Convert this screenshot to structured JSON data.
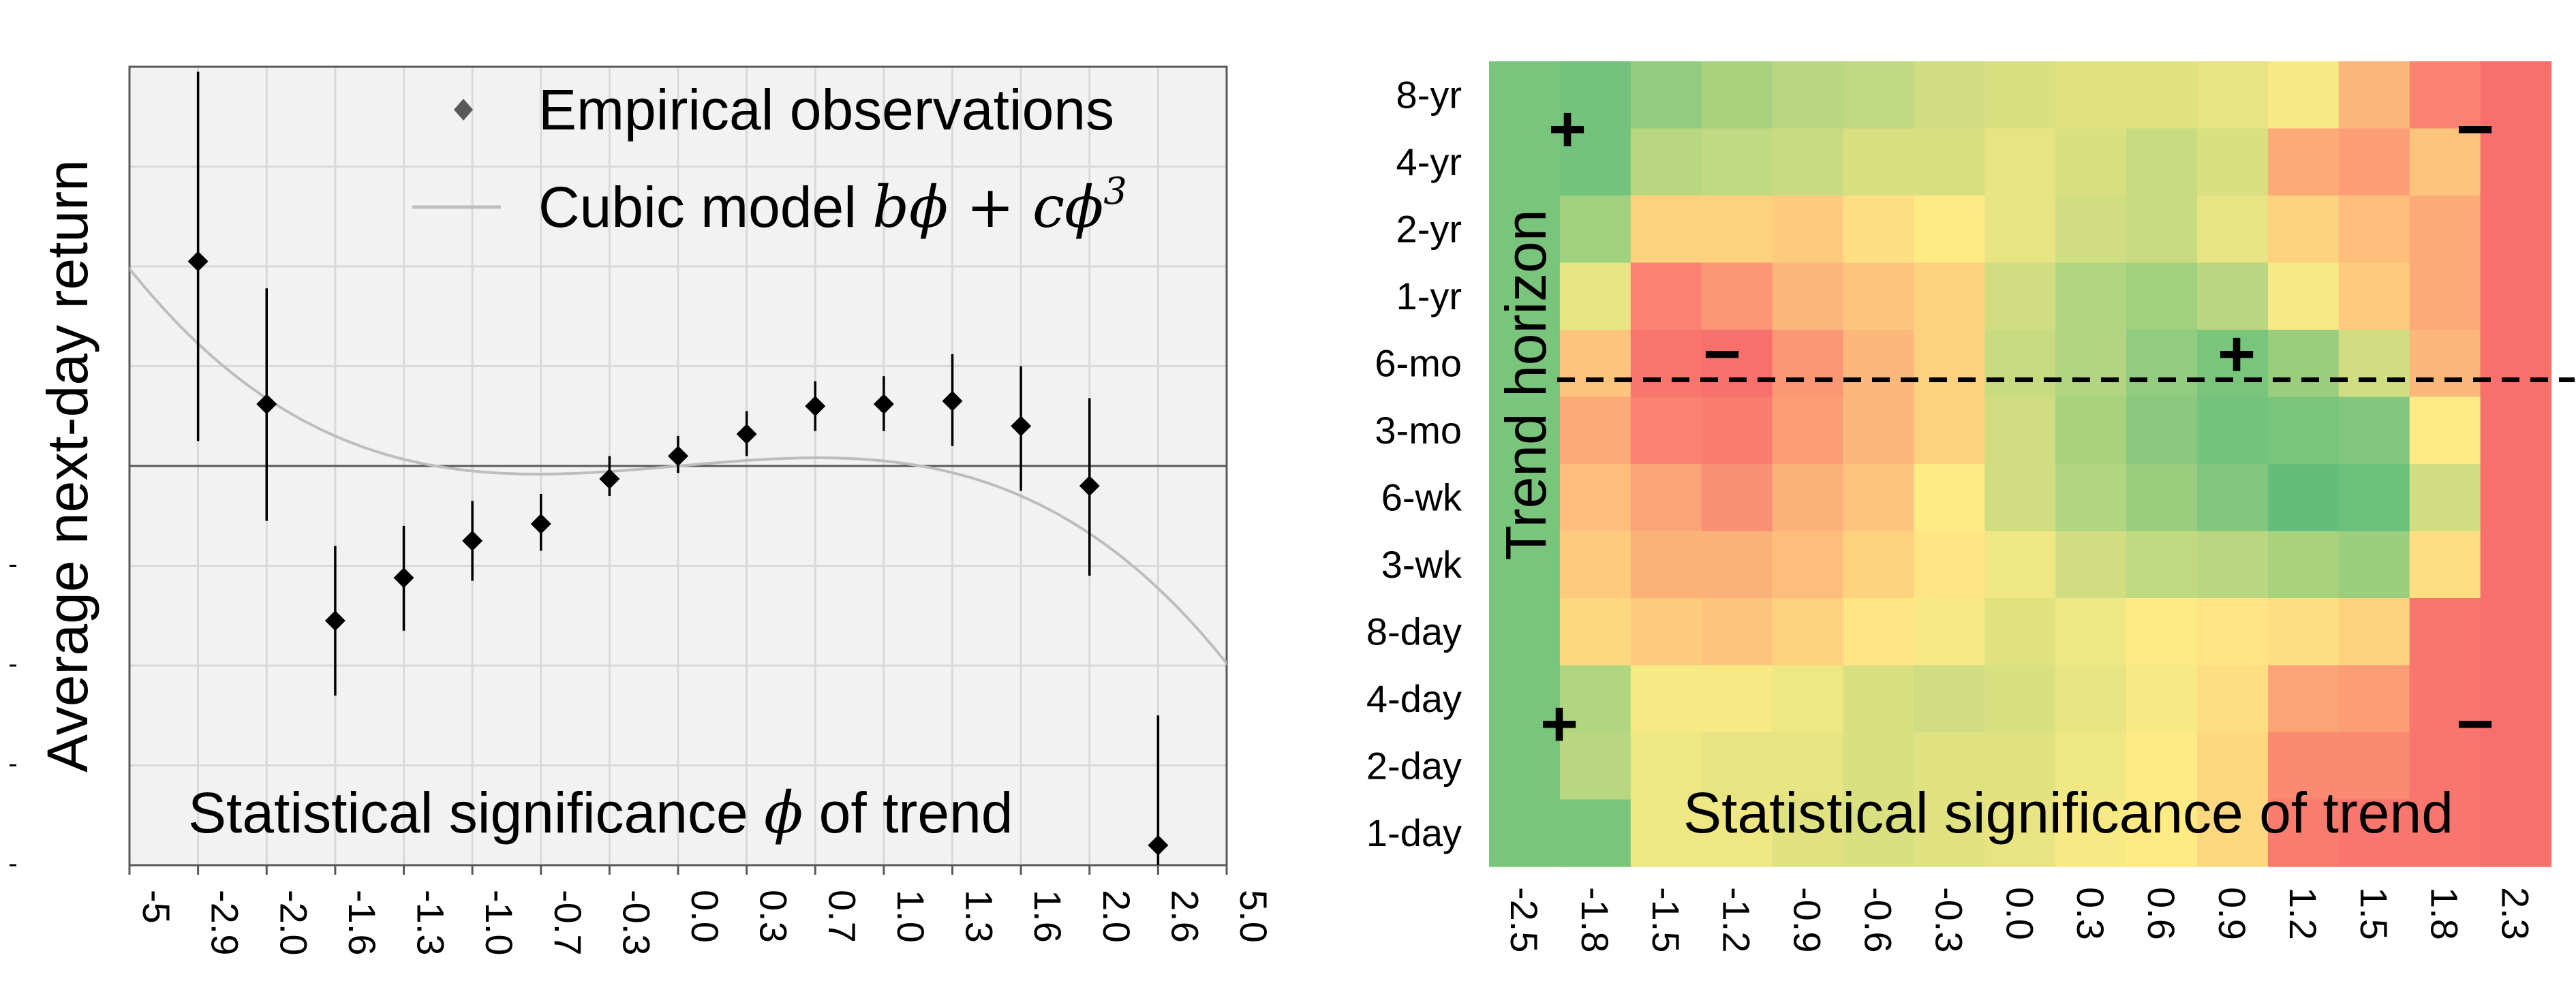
{
  "chart_data": [
    {
      "type": "scatter",
      "xlabel_prefix": "Statistical significance",
      "xlabel_symbol": "ϕ",
      "xlabel_suffix": "of trend",
      "ylabel": "Average next-day return",
      "categories": [
        "-5",
        "-2.9",
        "-2.0",
        "-1.6",
        "-1.3",
        "-1.0",
        "-0.7",
        "-0.3",
        "0.0",
        "0.3",
        "0.7",
        "1.0",
        "1.3",
        "1.6",
        "2.0",
        "2.6",
        "5.0"
      ],
      "ylim": [
        -4,
        4
      ],
      "grid": true,
      "legend_position": "top-right",
      "series": [
        {
          "name": "Empirical observations",
          "type": "points-with-error-bars",
          "points": [
            {
              "x": "-2.9",
              "y": 2.05,
              "lo": 0.25,
              "hi": 3.95
            },
            {
              "x": "-2.0",
              "y": 0.62,
              "lo": -0.55,
              "hi": 1.78
            },
            {
              "x": "-1.6",
              "y": -1.55,
              "lo": -2.3,
              "hi": -0.8
            },
            {
              "x": "-1.3",
              "y": -1.12,
              "lo": -1.65,
              "hi": -0.6
            },
            {
              "x": "-1.0",
              "y": -0.75,
              "lo": -1.15,
              "hi": -0.35
            },
            {
              "x": "-0.7",
              "y": -0.58,
              "lo": -0.85,
              "hi": -0.28
            },
            {
              "x": "-0.3",
              "y": -0.13,
              "lo": -0.3,
              "hi": 0.1
            },
            {
              "x": "0.0",
              "y": 0.1,
              "lo": -0.07,
              "hi": 0.3
            },
            {
              "x": "0.3",
              "y": 0.32,
              "lo": 0.1,
              "hi": 0.55
            },
            {
              "x": "0.7",
              "y": 0.6,
              "lo": 0.35,
              "hi": 0.85
            },
            {
              "x": "1.0",
              "y": 0.62,
              "lo": 0.35,
              "hi": 0.9
            },
            {
              "x": "1.3",
              "y": 0.65,
              "lo": 0.2,
              "hi": 1.12
            },
            {
              "x": "1.6",
              "y": 0.4,
              "lo": -0.25,
              "hi": 1.0
            },
            {
              "x": "2.0",
              "y": -0.2,
              "lo": -1.1,
              "hi": 0.68
            },
            {
              "x": "2.6",
              "y": -3.8,
              "lo": -4.0,
              "hi": -2.5
            }
          ]
        },
        {
          "name": "Cubic model",
          "formula": "bϕ + cϕ³",
          "type": "line",
          "color": "#bdbdbd"
        }
      ],
      "legend": {
        "points_label": "Empirical observations",
        "line_label": "Cubic model",
        "line_formula": "bϕ + cϕ",
        "line_formula_exp": "3"
      }
    },
    {
      "type": "heatmap",
      "xlabel": "Statistical significance of trend",
      "ylabel": "Trend horizon",
      "x_categories": [
        "-2.5",
        "-1.8",
        "-1.5",
        "-1.2",
        "-0.9",
        "-0.6",
        "-0.3",
        "0.0",
        "0.3",
        "0.6",
        "0.9",
        "1.2",
        "1.5",
        "1.8",
        "2.3"
      ],
      "y_categories": [
        "8-yr",
        "4-yr",
        "2-yr",
        "1-yr",
        "6-mo",
        "3-mo",
        "6-wk",
        "3-wk",
        "8-day",
        "4-day",
        "2-day",
        "1-day"
      ],
      "color_scale": {
        "low": "#f8696b",
        "mid": "#ffeb84",
        "high": "#63be7b"
      },
      "values": [
        [
          0.85,
          0.9,
          0.7,
          0.55,
          0.45,
          0.4,
          0.3,
          0.25,
          0.2,
          0.2,
          0.15,
          0.05,
          -0.4,
          -0.8,
          -0.95
        ],
        [
          0.85,
          0.9,
          0.45,
          0.4,
          0.35,
          0.25,
          0.25,
          0.15,
          0.25,
          0.35,
          0.25,
          -0.5,
          -0.6,
          -0.3,
          -0.95
        ],
        [
          0.85,
          0.6,
          -0.2,
          -0.2,
          -0.25,
          -0.1,
          0.0,
          0.15,
          0.3,
          0.35,
          0.15,
          -0.2,
          -0.35,
          -0.5,
          -0.95
        ],
        [
          0.85,
          0.15,
          -0.8,
          -0.65,
          -0.4,
          -0.3,
          -0.2,
          0.3,
          0.5,
          0.6,
          0.45,
          0.05,
          -0.25,
          -0.5,
          -0.95
        ],
        [
          0.85,
          -0.3,
          -0.9,
          -0.95,
          -0.65,
          -0.4,
          -0.2,
          0.35,
          0.5,
          0.7,
          0.85,
          0.65,
          0.3,
          -0.4,
          -0.95
        ],
        [
          0.85,
          -0.5,
          -0.8,
          -0.85,
          -0.6,
          -0.4,
          -0.2,
          0.3,
          0.55,
          0.75,
          0.9,
          0.85,
          0.8,
          0.0,
          -0.95
        ],
        [
          0.85,
          -0.35,
          -0.55,
          -0.7,
          -0.45,
          -0.3,
          0.0,
          0.3,
          0.5,
          0.65,
          0.8,
          1.0,
          0.95,
          0.3,
          -0.95
        ],
        [
          0.85,
          -0.25,
          -0.45,
          -0.45,
          -0.35,
          -0.2,
          -0.05,
          0.1,
          0.3,
          0.4,
          0.45,
          0.55,
          0.65,
          -0.1,
          -0.95
        ],
        [
          0.85,
          -0.15,
          -0.25,
          -0.3,
          -0.2,
          -0.05,
          0.05,
          0.2,
          0.1,
          0.0,
          -0.05,
          -0.1,
          -0.2,
          -0.9,
          -0.95
        ],
        [
          0.85,
          0.5,
          0.05,
          0.05,
          0.1,
          0.25,
          0.3,
          0.25,
          0.15,
          0.05,
          -0.1,
          -0.55,
          -0.6,
          -0.9,
          -0.95
        ],
        [
          0.85,
          0.45,
          0.1,
          0.15,
          0.15,
          0.25,
          0.2,
          0.2,
          0.1,
          0.0,
          -0.15,
          -0.75,
          -0.75,
          -0.9,
          -0.95
        ],
        [
          0.85,
          0.85,
          0.1,
          0.1,
          0.2,
          0.25,
          0.2,
          0.15,
          0.05,
          0.0,
          -0.15,
          -0.85,
          -0.9,
          -0.9,
          -0.95
        ]
      ],
      "divider_between": [
        "6-mo",
        "3-mo"
      ],
      "annotations": [
        {
          "text": "+",
          "near": "top-left"
        },
        {
          "text": "−",
          "near": "top-right"
        },
        {
          "text": "−",
          "near": "upper-center-left"
        },
        {
          "text": "+",
          "near": "upper-center-right"
        },
        {
          "text": "+",
          "near": "bottom-left"
        },
        {
          "text": "−",
          "near": "bottom-right"
        }
      ]
    }
  ]
}
